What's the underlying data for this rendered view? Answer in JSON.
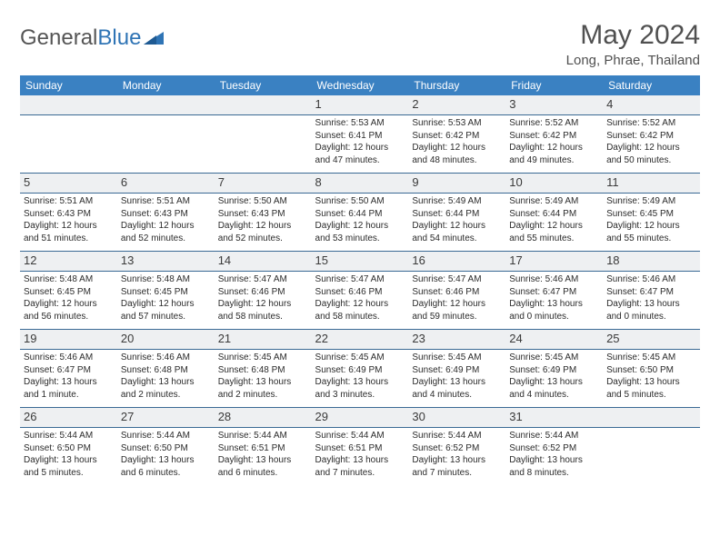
{
  "logo": {
    "text1": "General",
    "text2": "Blue"
  },
  "title": "May 2024",
  "location": "Long, Phrae, Thailand",
  "colors": {
    "header_bg": "#3a81c2",
    "header_text": "#ffffff",
    "daynum_bg": "#eef0f2",
    "border": "#3a6a94",
    "body_text": "#2b2b2b",
    "title_text": "#505050"
  },
  "day_headers": [
    "Sunday",
    "Monday",
    "Tuesday",
    "Wednesday",
    "Thursday",
    "Friday",
    "Saturday"
  ],
  "weeks": [
    [
      {
        "n": "",
        "sr": "",
        "ss": "",
        "dl": ""
      },
      {
        "n": "",
        "sr": "",
        "ss": "",
        "dl": ""
      },
      {
        "n": "",
        "sr": "",
        "ss": "",
        "dl": ""
      },
      {
        "n": "1",
        "sr": "Sunrise: 5:53 AM",
        "ss": "Sunset: 6:41 PM",
        "dl": "Daylight: 12 hours and 47 minutes."
      },
      {
        "n": "2",
        "sr": "Sunrise: 5:53 AM",
        "ss": "Sunset: 6:42 PM",
        "dl": "Daylight: 12 hours and 48 minutes."
      },
      {
        "n": "3",
        "sr": "Sunrise: 5:52 AM",
        "ss": "Sunset: 6:42 PM",
        "dl": "Daylight: 12 hours and 49 minutes."
      },
      {
        "n": "4",
        "sr": "Sunrise: 5:52 AM",
        "ss": "Sunset: 6:42 PM",
        "dl": "Daylight: 12 hours and 50 minutes."
      }
    ],
    [
      {
        "n": "5",
        "sr": "Sunrise: 5:51 AM",
        "ss": "Sunset: 6:43 PM",
        "dl": "Daylight: 12 hours and 51 minutes."
      },
      {
        "n": "6",
        "sr": "Sunrise: 5:51 AM",
        "ss": "Sunset: 6:43 PM",
        "dl": "Daylight: 12 hours and 52 minutes."
      },
      {
        "n": "7",
        "sr": "Sunrise: 5:50 AM",
        "ss": "Sunset: 6:43 PM",
        "dl": "Daylight: 12 hours and 52 minutes."
      },
      {
        "n": "8",
        "sr": "Sunrise: 5:50 AM",
        "ss": "Sunset: 6:44 PM",
        "dl": "Daylight: 12 hours and 53 minutes."
      },
      {
        "n": "9",
        "sr": "Sunrise: 5:49 AM",
        "ss": "Sunset: 6:44 PM",
        "dl": "Daylight: 12 hours and 54 minutes."
      },
      {
        "n": "10",
        "sr": "Sunrise: 5:49 AM",
        "ss": "Sunset: 6:44 PM",
        "dl": "Daylight: 12 hours and 55 minutes."
      },
      {
        "n": "11",
        "sr": "Sunrise: 5:49 AM",
        "ss": "Sunset: 6:45 PM",
        "dl": "Daylight: 12 hours and 55 minutes."
      }
    ],
    [
      {
        "n": "12",
        "sr": "Sunrise: 5:48 AM",
        "ss": "Sunset: 6:45 PM",
        "dl": "Daylight: 12 hours and 56 minutes."
      },
      {
        "n": "13",
        "sr": "Sunrise: 5:48 AM",
        "ss": "Sunset: 6:45 PM",
        "dl": "Daylight: 12 hours and 57 minutes."
      },
      {
        "n": "14",
        "sr": "Sunrise: 5:47 AM",
        "ss": "Sunset: 6:46 PM",
        "dl": "Daylight: 12 hours and 58 minutes."
      },
      {
        "n": "15",
        "sr": "Sunrise: 5:47 AM",
        "ss": "Sunset: 6:46 PM",
        "dl": "Daylight: 12 hours and 58 minutes."
      },
      {
        "n": "16",
        "sr": "Sunrise: 5:47 AM",
        "ss": "Sunset: 6:46 PM",
        "dl": "Daylight: 12 hours and 59 minutes."
      },
      {
        "n": "17",
        "sr": "Sunrise: 5:46 AM",
        "ss": "Sunset: 6:47 PM",
        "dl": "Daylight: 13 hours and 0 minutes."
      },
      {
        "n": "18",
        "sr": "Sunrise: 5:46 AM",
        "ss": "Sunset: 6:47 PM",
        "dl": "Daylight: 13 hours and 0 minutes."
      }
    ],
    [
      {
        "n": "19",
        "sr": "Sunrise: 5:46 AM",
        "ss": "Sunset: 6:47 PM",
        "dl": "Daylight: 13 hours and 1 minute."
      },
      {
        "n": "20",
        "sr": "Sunrise: 5:46 AM",
        "ss": "Sunset: 6:48 PM",
        "dl": "Daylight: 13 hours and 2 minutes."
      },
      {
        "n": "21",
        "sr": "Sunrise: 5:45 AM",
        "ss": "Sunset: 6:48 PM",
        "dl": "Daylight: 13 hours and 2 minutes."
      },
      {
        "n": "22",
        "sr": "Sunrise: 5:45 AM",
        "ss": "Sunset: 6:49 PM",
        "dl": "Daylight: 13 hours and 3 minutes."
      },
      {
        "n": "23",
        "sr": "Sunrise: 5:45 AM",
        "ss": "Sunset: 6:49 PM",
        "dl": "Daylight: 13 hours and 4 minutes."
      },
      {
        "n": "24",
        "sr": "Sunrise: 5:45 AM",
        "ss": "Sunset: 6:49 PM",
        "dl": "Daylight: 13 hours and 4 minutes."
      },
      {
        "n": "25",
        "sr": "Sunrise: 5:45 AM",
        "ss": "Sunset: 6:50 PM",
        "dl": "Daylight: 13 hours and 5 minutes."
      }
    ],
    [
      {
        "n": "26",
        "sr": "Sunrise: 5:44 AM",
        "ss": "Sunset: 6:50 PM",
        "dl": "Daylight: 13 hours and 5 minutes."
      },
      {
        "n": "27",
        "sr": "Sunrise: 5:44 AM",
        "ss": "Sunset: 6:50 PM",
        "dl": "Daylight: 13 hours and 6 minutes."
      },
      {
        "n": "28",
        "sr": "Sunrise: 5:44 AM",
        "ss": "Sunset: 6:51 PM",
        "dl": "Daylight: 13 hours and 6 minutes."
      },
      {
        "n": "29",
        "sr": "Sunrise: 5:44 AM",
        "ss": "Sunset: 6:51 PM",
        "dl": "Daylight: 13 hours and 7 minutes."
      },
      {
        "n": "30",
        "sr": "Sunrise: 5:44 AM",
        "ss": "Sunset: 6:52 PM",
        "dl": "Daylight: 13 hours and 7 minutes."
      },
      {
        "n": "31",
        "sr": "Sunrise: 5:44 AM",
        "ss": "Sunset: 6:52 PM",
        "dl": "Daylight: 13 hours and 8 minutes."
      },
      {
        "n": "",
        "sr": "",
        "ss": "",
        "dl": ""
      }
    ]
  ]
}
